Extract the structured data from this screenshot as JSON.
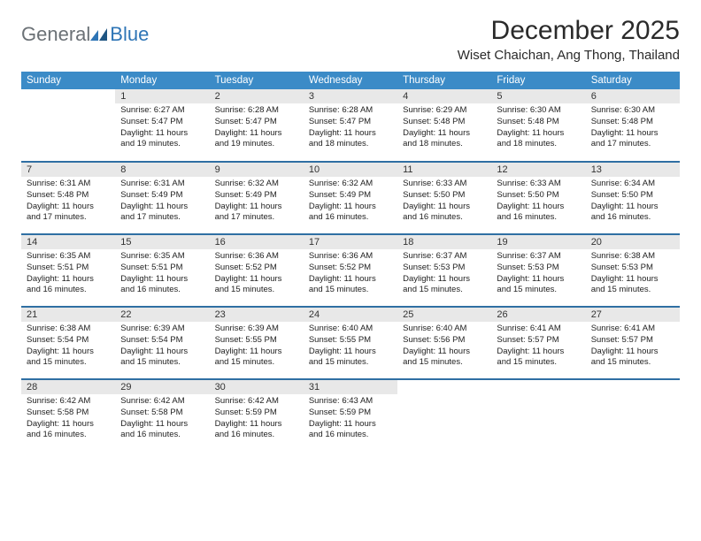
{
  "brand": {
    "part1": "General",
    "part2": "Blue"
  },
  "title": "December 2025",
  "location": "Wiset Chaichan, Ang Thong, Thailand",
  "colors": {
    "header_bg": "#3b8bc7",
    "header_text": "#ffffff",
    "row_divider": "#2f6fa3",
    "daynum_bg": "#e8e8e8",
    "text": "#222222",
    "brand_gray": "#6b7176",
    "brand_blue": "#2e75b6",
    "page_bg": "#ffffff"
  },
  "typography": {
    "month_title_fontsize": 30,
    "location_fontsize": 15,
    "weekday_fontsize": 11.5,
    "daynum_fontsize": 11,
    "body_fontsize": 9.5
  },
  "weekdays": [
    "Sunday",
    "Monday",
    "Tuesday",
    "Wednesday",
    "Thursday",
    "Friday",
    "Saturday"
  ],
  "first_weekday_index": 1,
  "days": [
    {
      "n": 1,
      "sunrise": "6:27 AM",
      "sunset": "5:47 PM",
      "daylight": "11 hours and 19 minutes."
    },
    {
      "n": 2,
      "sunrise": "6:28 AM",
      "sunset": "5:47 PM",
      "daylight": "11 hours and 19 minutes."
    },
    {
      "n": 3,
      "sunrise": "6:28 AM",
      "sunset": "5:47 PM",
      "daylight": "11 hours and 18 minutes."
    },
    {
      "n": 4,
      "sunrise": "6:29 AM",
      "sunset": "5:48 PM",
      "daylight": "11 hours and 18 minutes."
    },
    {
      "n": 5,
      "sunrise": "6:30 AM",
      "sunset": "5:48 PM",
      "daylight": "11 hours and 18 minutes."
    },
    {
      "n": 6,
      "sunrise": "6:30 AM",
      "sunset": "5:48 PM",
      "daylight": "11 hours and 17 minutes."
    },
    {
      "n": 7,
      "sunrise": "6:31 AM",
      "sunset": "5:48 PM",
      "daylight": "11 hours and 17 minutes."
    },
    {
      "n": 8,
      "sunrise": "6:31 AM",
      "sunset": "5:49 PM",
      "daylight": "11 hours and 17 minutes."
    },
    {
      "n": 9,
      "sunrise": "6:32 AM",
      "sunset": "5:49 PM",
      "daylight": "11 hours and 17 minutes."
    },
    {
      "n": 10,
      "sunrise": "6:32 AM",
      "sunset": "5:49 PM",
      "daylight": "11 hours and 16 minutes."
    },
    {
      "n": 11,
      "sunrise": "6:33 AM",
      "sunset": "5:50 PM",
      "daylight": "11 hours and 16 minutes."
    },
    {
      "n": 12,
      "sunrise": "6:33 AM",
      "sunset": "5:50 PM",
      "daylight": "11 hours and 16 minutes."
    },
    {
      "n": 13,
      "sunrise": "6:34 AM",
      "sunset": "5:50 PM",
      "daylight": "11 hours and 16 minutes."
    },
    {
      "n": 14,
      "sunrise": "6:35 AM",
      "sunset": "5:51 PM",
      "daylight": "11 hours and 16 minutes."
    },
    {
      "n": 15,
      "sunrise": "6:35 AM",
      "sunset": "5:51 PM",
      "daylight": "11 hours and 16 minutes."
    },
    {
      "n": 16,
      "sunrise": "6:36 AM",
      "sunset": "5:52 PM",
      "daylight": "11 hours and 15 minutes."
    },
    {
      "n": 17,
      "sunrise": "6:36 AM",
      "sunset": "5:52 PM",
      "daylight": "11 hours and 15 minutes."
    },
    {
      "n": 18,
      "sunrise": "6:37 AM",
      "sunset": "5:53 PM",
      "daylight": "11 hours and 15 minutes."
    },
    {
      "n": 19,
      "sunrise": "6:37 AM",
      "sunset": "5:53 PM",
      "daylight": "11 hours and 15 minutes."
    },
    {
      "n": 20,
      "sunrise": "6:38 AM",
      "sunset": "5:53 PM",
      "daylight": "11 hours and 15 minutes."
    },
    {
      "n": 21,
      "sunrise": "6:38 AM",
      "sunset": "5:54 PM",
      "daylight": "11 hours and 15 minutes."
    },
    {
      "n": 22,
      "sunrise": "6:39 AM",
      "sunset": "5:54 PM",
      "daylight": "11 hours and 15 minutes."
    },
    {
      "n": 23,
      "sunrise": "6:39 AM",
      "sunset": "5:55 PM",
      "daylight": "11 hours and 15 minutes."
    },
    {
      "n": 24,
      "sunrise": "6:40 AM",
      "sunset": "5:55 PM",
      "daylight": "11 hours and 15 minutes."
    },
    {
      "n": 25,
      "sunrise": "6:40 AM",
      "sunset": "5:56 PM",
      "daylight": "11 hours and 15 minutes."
    },
    {
      "n": 26,
      "sunrise": "6:41 AM",
      "sunset": "5:57 PM",
      "daylight": "11 hours and 15 minutes."
    },
    {
      "n": 27,
      "sunrise": "6:41 AM",
      "sunset": "5:57 PM",
      "daylight": "11 hours and 15 minutes."
    },
    {
      "n": 28,
      "sunrise": "6:42 AM",
      "sunset": "5:58 PM",
      "daylight": "11 hours and 16 minutes."
    },
    {
      "n": 29,
      "sunrise": "6:42 AM",
      "sunset": "5:58 PM",
      "daylight": "11 hours and 16 minutes."
    },
    {
      "n": 30,
      "sunrise": "6:42 AM",
      "sunset": "5:59 PM",
      "daylight": "11 hours and 16 minutes."
    },
    {
      "n": 31,
      "sunrise": "6:43 AM",
      "sunset": "5:59 PM",
      "daylight": "11 hours and 16 minutes."
    }
  ],
  "labels": {
    "sunrise": "Sunrise: ",
    "sunset": "Sunset: ",
    "daylight": "Daylight: "
  }
}
